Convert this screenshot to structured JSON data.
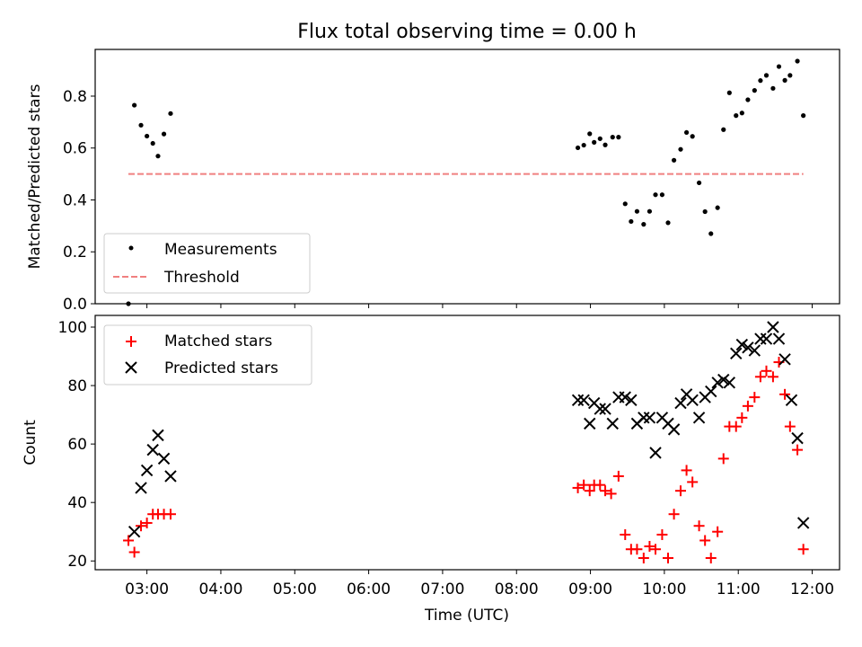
{
  "title": "Flux total observing time = 0.00 h",
  "chart_data": [
    {
      "type": "scatter",
      "ylabel": "Matched/Predicted stars",
      "xlim": [
        2.3,
        12.37
      ],
      "ylim": [
        0,
        0.98
      ],
      "yticks": [
        "0.0",
        "0.2",
        "0.4",
        "0.6",
        "0.8"
      ],
      "ytick_values": [
        0,
        0.2,
        0.4,
        0.6,
        0.8
      ],
      "legend_position": "lower-left",
      "series": [
        {
          "name": "Measurements",
          "marker": "dot",
          "color": "#000000",
          "points": [
            [
              2.75,
              0.0
            ],
            [
              2.83,
              0.765
            ],
            [
              2.92,
              0.688
            ],
            [
              3.0,
              0.646
            ],
            [
              3.08,
              0.618
            ],
            [
              3.15,
              0.569
            ],
            [
              3.23,
              0.654
            ],
            [
              3.32,
              0.733
            ],
            [
              8.83,
              0.601
            ],
            [
              8.91,
              0.611
            ],
            [
              8.99,
              0.655
            ],
            [
              9.05,
              0.622
            ],
            [
              9.13,
              0.636
            ],
            [
              9.2,
              0.612
            ],
            [
              9.3,
              0.642
            ],
            [
              9.38,
              0.642
            ],
            [
              9.47,
              0.385
            ],
            [
              9.55,
              0.317
            ],
            [
              9.63,
              0.356
            ],
            [
              9.72,
              0.306
            ],
            [
              9.8,
              0.356
            ],
            [
              9.88,
              0.42
            ],
            [
              9.97,
              0.42
            ],
            [
              10.05,
              0.312
            ],
            [
              10.13,
              0.553
            ],
            [
              10.22,
              0.595
            ],
            [
              10.3,
              0.66
            ],
            [
              10.38,
              0.645
            ],
            [
              10.47,
              0.466
            ],
            [
              10.55,
              0.355
            ],
            [
              10.63,
              0.27
            ],
            [
              10.72,
              0.37
            ],
            [
              10.8,
              0.671
            ],
            [
              10.88,
              0.813
            ],
            [
              10.97,
              0.725
            ],
            [
              11.05,
              0.735
            ],
            [
              11.13,
              0.786
            ],
            [
              11.22,
              0.822
            ],
            [
              11.3,
              0.86
            ],
            [
              11.38,
              0.88
            ],
            [
              11.47,
              0.83
            ],
            [
              11.55,
              0.914
            ],
            [
              11.63,
              0.861
            ],
            [
              11.7,
              0.88
            ],
            [
              11.8,
              0.935
            ],
            [
              11.88,
              0.725
            ]
          ]
        },
        {
          "name": "Threshold",
          "marker": "dashed-line",
          "color": "#f08080",
          "points": [
            [
              2.75,
              0.5
            ],
            [
              11.88,
              0.5
            ]
          ]
        }
      ]
    },
    {
      "type": "scatter",
      "xlabel": "Time (UTC)",
      "ylabel": "Count",
      "xlim": [
        2.3,
        12.37
      ],
      "ylim": [
        17,
        104
      ],
      "xticks": [
        "03:00",
        "04:00",
        "05:00",
        "06:00",
        "07:00",
        "08:00",
        "09:00",
        "10:00",
        "11:00",
        "12:00"
      ],
      "xtick_values": [
        3,
        4,
        5,
        6,
        7,
        8,
        9,
        10,
        11,
        12
      ],
      "yticks": [
        "20",
        "40",
        "60",
        "80",
        "100"
      ],
      "ytick_values": [
        20,
        40,
        60,
        80,
        100
      ],
      "legend_position": "upper-left",
      "series": [
        {
          "name": "Matched stars",
          "marker": "plus",
          "color": "#ff0000",
          "points": [
            [
              2.75,
              27
            ],
            [
              2.83,
              23
            ],
            [
              2.92,
              32
            ],
            [
              3.0,
              33
            ],
            [
              3.08,
              36
            ],
            [
              3.15,
              36
            ],
            [
              3.23,
              36
            ],
            [
              3.32,
              36
            ],
            [
              8.83,
              45
            ],
            [
              8.91,
              46
            ],
            [
              8.99,
              44
            ],
            [
              9.05,
              46
            ],
            [
              9.13,
              46
            ],
            [
              9.2,
              44
            ],
            [
              9.28,
              43
            ],
            [
              9.38,
              49
            ],
            [
              9.47,
              29
            ],
            [
              9.55,
              24
            ],
            [
              9.63,
              24
            ],
            [
              9.72,
              21
            ],
            [
              9.8,
              25
            ],
            [
              9.88,
              24
            ],
            [
              9.97,
              29
            ],
            [
              10.05,
              21
            ],
            [
              10.13,
              36
            ],
            [
              10.22,
              44
            ],
            [
              10.3,
              51
            ],
            [
              10.38,
              47
            ],
            [
              10.47,
              32
            ],
            [
              10.55,
              27
            ],
            [
              10.63,
              21
            ],
            [
              10.72,
              30
            ],
            [
              10.8,
              55
            ],
            [
              10.88,
              66
            ],
            [
              10.97,
              66
            ],
            [
              11.05,
              69
            ],
            [
              11.13,
              73
            ],
            [
              11.22,
              76
            ],
            [
              11.3,
              83
            ],
            [
              11.38,
              85
            ],
            [
              11.47,
              83
            ],
            [
              11.55,
              88
            ],
            [
              11.63,
              77
            ],
            [
              11.7,
              66
            ],
            [
              11.8,
              58
            ],
            [
              11.88,
              24
            ]
          ]
        },
        {
          "name": "Predicted stars",
          "marker": "x",
          "color": "#000000",
          "points": [
            [
              2.83,
              30
            ],
            [
              2.92,
              45
            ],
            [
              3.0,
              51
            ],
            [
              3.08,
              58
            ],
            [
              3.15,
              63
            ],
            [
              3.23,
              55
            ],
            [
              3.32,
              49
            ],
            [
              8.83,
              75
            ],
            [
              8.91,
              75
            ],
            [
              8.99,
              67
            ],
            [
              9.05,
              74
            ],
            [
              9.13,
              72
            ],
            [
              9.2,
              72
            ],
            [
              9.3,
              67
            ],
            [
              9.38,
              76
            ],
            [
              9.47,
              76
            ],
            [
              9.55,
              75
            ],
            [
              9.63,
              67
            ],
            [
              9.72,
              69
            ],
            [
              9.8,
              69
            ],
            [
              9.88,
              57
            ],
            [
              9.97,
              69
            ],
            [
              10.05,
              67
            ],
            [
              10.13,
              65
            ],
            [
              10.22,
              74
            ],
            [
              10.3,
              77
            ],
            [
              10.38,
              75
            ],
            [
              10.47,
              69
            ],
            [
              10.55,
              76
            ],
            [
              10.63,
              78
            ],
            [
              10.72,
              81
            ],
            [
              10.8,
              82
            ],
            [
              10.88,
              81
            ],
            [
              10.97,
              91
            ],
            [
              11.05,
              94
            ],
            [
              11.13,
              93
            ],
            [
              11.22,
              92
            ],
            [
              11.3,
              96
            ],
            [
              11.38,
              96
            ],
            [
              11.47,
              100
            ],
            [
              11.55,
              96
            ],
            [
              11.63,
              89
            ],
            [
              11.72,
              75
            ],
            [
              11.8,
              62
            ],
            [
              11.88,
              33
            ]
          ]
        }
      ]
    }
  ]
}
